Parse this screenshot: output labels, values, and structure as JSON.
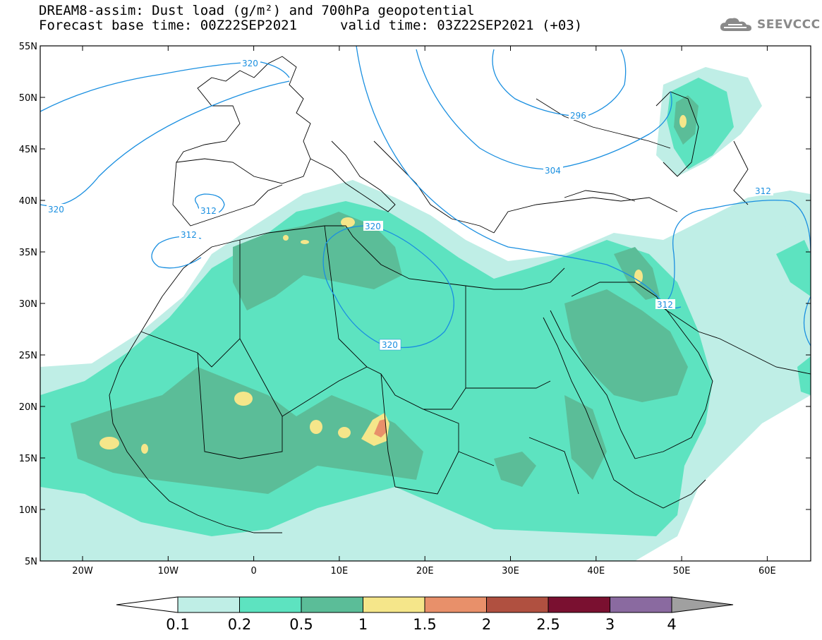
{
  "title": {
    "line1": "DREAM8-assim: Dust load (g/m²) and 700hPa geopotential",
    "line2": "Forecast base time: 00Z22SEP2021",
    "line2_valid": "valid time: 03Z22SEP2021 (+03)"
  },
  "logo": {
    "text": "SEEVCCC",
    "icon": "cloud-icon"
  },
  "map": {
    "lat_labels": [
      "55N",
      "50N",
      "45N",
      "40N",
      "35N",
      "30N",
      "25N",
      "20N",
      "15N",
      "10N",
      "5N"
    ],
    "lon_labels": [
      "20W",
      "10W",
      "0",
      "10E",
      "20E",
      "30E",
      "40E",
      "50E",
      "60E"
    ],
    "contour_labels": [
      "320",
      "296",
      "304",
      "312",
      "312",
      "312",
      "320",
      "320",
      "312"
    ]
  },
  "colorbar": {
    "labels": [
      "0.1",
      "0.2",
      "0.5",
      "1",
      "1.5",
      "2",
      "2.5",
      "3",
      "4"
    ],
    "colors": [
      "#ffffff",
      "#bfeee6",
      "#5de3c0",
      "#5bbd98",
      "#f5e68a",
      "#e8906a",
      "#b05040",
      "#7a1030",
      "#8a6aa0",
      "#a0a0a0"
    ]
  }
}
